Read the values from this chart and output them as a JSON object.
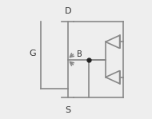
{
  "fig_width": 1.9,
  "fig_height": 1.49,
  "dpi": 100,
  "bg_color": "#eeeeee",
  "line_color": "#888888",
  "line_width": 1.2,
  "label_D": "D",
  "label_S": "S",
  "label_G": "G",
  "label_B": "B",
  "label_fontsize": 8,
  "label_color": "#333333"
}
